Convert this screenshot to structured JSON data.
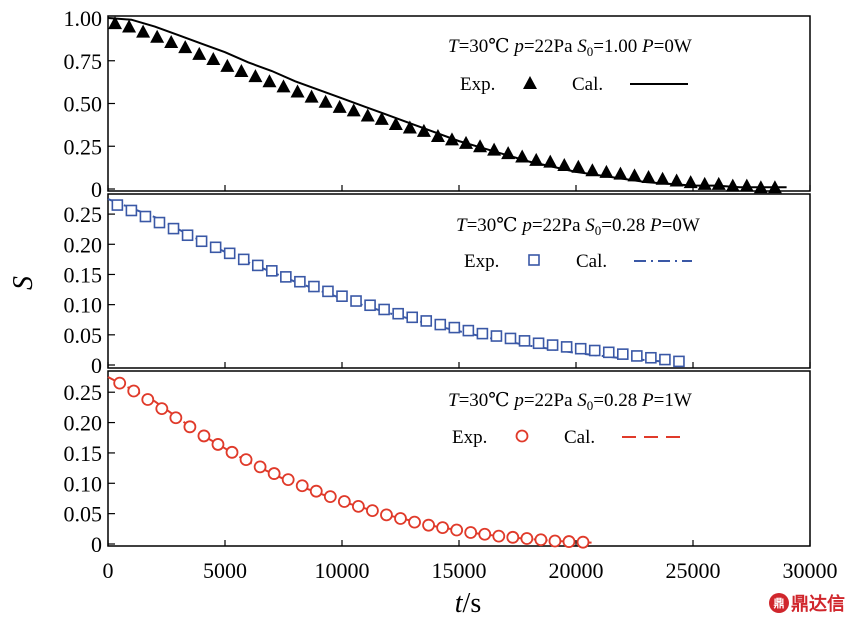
{
  "chart_data": [
    {
      "type": "scatter",
      "panel": "top",
      "annotation": {
        "T_sym": "T",
        "T_val": "=30℃",
        "p_sym": "p",
        "p_val": "=22Pa",
        "S0_sym": "S",
        "S0_sub": "0",
        "S0_val": "=1.00",
        "P_sym": "P",
        "P_val": "=0W"
      },
      "legend": {
        "exp": "Exp.",
        "cal": "Cal."
      },
      "xlim": [
        0,
        30000
      ],
      "ylim": [
        0,
        1.0
      ],
      "yticks": [
        "1.00",
        "0.75",
        "0.50",
        "0.25",
        "0"
      ],
      "ytick_values": [
        1.0,
        0.75,
        0.5,
        0.25,
        0
      ],
      "colors": {
        "exp": "#000000",
        "cal": "#000000"
      },
      "marker": "triangle",
      "line_style": "solid",
      "series": [
        {
          "name": "Exp.",
          "x": [
            300,
            900,
            1500,
            2100,
            2700,
            3300,
            3900,
            4500,
            5100,
            5700,
            6300,
            6900,
            7500,
            8100,
            8700,
            9300,
            9900,
            10500,
            11100,
            11700,
            12300,
            12900,
            13500,
            14100,
            14700,
            15300,
            15900,
            16500,
            17100,
            17700,
            18300,
            18900,
            19500,
            20100,
            20700,
            21300,
            21900,
            22500,
            23100,
            23700,
            24300,
            24900,
            25500,
            26100,
            26700,
            27300,
            27900,
            28500
          ],
          "y": [
            0.97,
            0.95,
            0.92,
            0.89,
            0.86,
            0.83,
            0.79,
            0.76,
            0.72,
            0.69,
            0.66,
            0.63,
            0.6,
            0.57,
            0.54,
            0.51,
            0.48,
            0.46,
            0.43,
            0.41,
            0.38,
            0.36,
            0.34,
            0.31,
            0.29,
            0.27,
            0.25,
            0.23,
            0.21,
            0.19,
            0.17,
            0.16,
            0.14,
            0.13,
            0.11,
            0.1,
            0.09,
            0.08,
            0.07,
            0.06,
            0.05,
            0.04,
            0.03,
            0.03,
            0.02,
            0.02,
            0.01,
            0.01
          ]
        },
        {
          "name": "Cal.",
          "x": [
            0,
            1000,
            2000,
            3000,
            4000,
            5000,
            6000,
            7000,
            8000,
            9000,
            10000,
            11000,
            12000,
            13000,
            14000,
            15000,
            16000,
            17000,
            18000,
            19000,
            20000,
            21000,
            22000,
            23000,
            24000,
            25000,
            26000,
            27000,
            28000,
            29000
          ],
          "y": [
            1.0,
            0.99,
            0.95,
            0.9,
            0.85,
            0.8,
            0.74,
            0.69,
            0.63,
            0.58,
            0.53,
            0.48,
            0.43,
            0.38,
            0.33,
            0.28,
            0.24,
            0.2,
            0.16,
            0.13,
            0.1,
            0.08,
            0.06,
            0.04,
            0.03,
            0.02,
            0.02,
            0.01,
            0.01,
            0.01
          ]
        }
      ]
    },
    {
      "type": "scatter",
      "panel": "middle",
      "annotation": {
        "T_sym": "T",
        "T_val": "=30℃",
        "p_sym": "p",
        "p_val": "=22Pa",
        "S0_sym": "S",
        "S0_sub": "0",
        "S0_val": "=0.28",
        "P_sym": "P",
        "P_val": "=0W"
      },
      "legend": {
        "exp": "Exp.",
        "cal": "Cal."
      },
      "xlim": [
        0,
        30000
      ],
      "ylim": [
        0,
        0.28
      ],
      "yticks": [
        "0.25",
        "0.20",
        "0.15",
        "0.10",
        "0.05",
        "0"
      ],
      "ytick_values": [
        0.25,
        0.2,
        0.15,
        0.1,
        0.05,
        0
      ],
      "ylabel": "S",
      "colors": {
        "exp": "#3a58a6",
        "cal": "#3a58a6"
      },
      "marker": "square",
      "line_style": "dashdot",
      "series": [
        {
          "name": "Exp.",
          "x": [
            400,
            1000,
            1600,
            2200,
            2800,
            3400,
            4000,
            4600,
            5200,
            5800,
            6400,
            7000,
            7600,
            8200,
            8800,
            9400,
            10000,
            10600,
            11200,
            11800,
            12400,
            13000,
            13600,
            14200,
            14800,
            15400,
            16000,
            16600,
            17200,
            17800,
            18400,
            19000,
            19600,
            20200,
            20800,
            21400,
            22000,
            22600,
            23200,
            23800,
            24400
          ],
          "y": [
            0.265,
            0.256,
            0.246,
            0.236,
            0.226,
            0.215,
            0.205,
            0.195,
            0.185,
            0.175,
            0.165,
            0.156,
            0.146,
            0.138,
            0.13,
            0.122,
            0.114,
            0.106,
            0.099,
            0.092,
            0.085,
            0.079,
            0.073,
            0.067,
            0.062,
            0.057,
            0.052,
            0.048,
            0.044,
            0.04,
            0.036,
            0.033,
            0.03,
            0.027,
            0.024,
            0.021,
            0.018,
            0.015,
            0.012,
            0.009,
            0.006
          ]
        },
        {
          "name": "Cal.",
          "x": [
            0,
            2000,
            4000,
            6000,
            8000,
            10000,
            12000,
            14000,
            16000,
            18000,
            20000,
            22000,
            24000
          ],
          "y": [
            0.275,
            0.245,
            0.205,
            0.17,
            0.138,
            0.11,
            0.086,
            0.065,
            0.047,
            0.032,
            0.02,
            0.011,
            0.005
          ]
        }
      ]
    },
    {
      "type": "scatter",
      "panel": "bottom",
      "annotation": {
        "T_sym": "T",
        "T_val": "=30℃",
        "p_sym": "p",
        "p_val": "=22Pa",
        "S0_sym": "S",
        "S0_sub": "0",
        "S0_val": "=0.28",
        "P_sym": "P",
        "P_val": "=1W"
      },
      "legend": {
        "exp": "Exp.",
        "cal": "Cal."
      },
      "xlim": [
        0,
        30000
      ],
      "ylim": [
        0,
        0.28
      ],
      "yticks": [
        "0.25",
        "0.20",
        "0.15",
        "0.10",
        "0.05",
        "0"
      ],
      "ytick_values": [
        0.25,
        0.2,
        0.15,
        0.1,
        0.05,
        0
      ],
      "xticks": [
        "0",
        "5000",
        "10000",
        "15000",
        "20000",
        "25000",
        "30000"
      ],
      "xtick_values": [
        0,
        5000,
        10000,
        15000,
        20000,
        25000,
        30000
      ],
      "xlabel_sym": "t",
      "xlabel_unit": "/s",
      "colors": {
        "exp": "#e03a2a",
        "cal": "#e03a2a"
      },
      "marker": "circle",
      "line_style": "dashed",
      "series": [
        {
          "name": "Exp.",
          "x": [
            500,
            1100,
            1700,
            2300,
            2900,
            3500,
            4100,
            4700,
            5300,
            5900,
            6500,
            7100,
            7700,
            8300,
            8900,
            9500,
            10100,
            10700,
            11300,
            11900,
            12500,
            13100,
            13700,
            14300,
            14900,
            15500,
            16100,
            16700,
            17300,
            17900,
            18500,
            19100,
            19700,
            20300
          ],
          "y": [
            0.265,
            0.252,
            0.238,
            0.223,
            0.208,
            0.193,
            0.178,
            0.164,
            0.151,
            0.139,
            0.127,
            0.116,
            0.106,
            0.096,
            0.087,
            0.078,
            0.07,
            0.062,
            0.055,
            0.048,
            0.042,
            0.036,
            0.031,
            0.027,
            0.023,
            0.019,
            0.016,
            0.013,
            0.011,
            0.009,
            0.007,
            0.005,
            0.004,
            0.003
          ]
        },
        {
          "name": "Cal.",
          "x": [
            0,
            2000,
            4000,
            6000,
            8000,
            10000,
            12000,
            14000,
            16000,
            18000,
            20000,
            20800
          ],
          "y": [
            0.275,
            0.235,
            0.18,
            0.135,
            0.098,
            0.07,
            0.047,
            0.029,
            0.016,
            0.008,
            0.003,
            0.002
          ]
        }
      ]
    }
  ],
  "watermark": {
    "logo": "鼎",
    "text": "鼎达信"
  }
}
